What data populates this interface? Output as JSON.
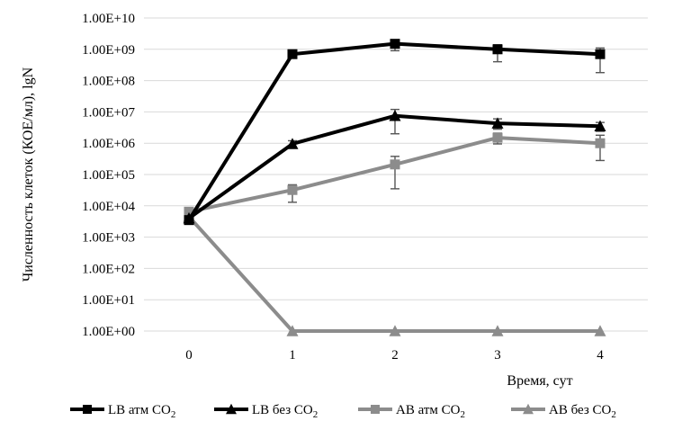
{
  "chart_data": {
    "type": "line",
    "ylabel": "Численность клеток (КОЕ/мл), lgN",
    "xlabel": "Время, сут",
    "x": [
      0,
      1,
      2,
      3,
      4
    ],
    "x_tick_labels": [
      "0",
      "1",
      "2",
      "3",
      "4"
    ],
    "y_scale": "log",
    "ylim": [
      1,
      10000000000
    ],
    "y_tick_labels": [
      "1.00E+00",
      "1.00E+01",
      "1.00E+02",
      "1.00E+03",
      "1.00E+04",
      "1.00E+05",
      "1.00E+06",
      "1.00E+07",
      "1.00E+08",
      "1.00E+09",
      "1.00E+10"
    ],
    "grid": "horizontal",
    "legend_position": "bottom",
    "series": [
      {
        "name": "LB атм CO2",
        "color": "#000000",
        "marker": "square",
        "values": [
          3500,
          700000000,
          1500000000,
          1000000000,
          700000000
        ],
        "error_low": [
          3000,
          600000000,
          900000000,
          400000000,
          180000000
        ],
        "error_high": [
          4000,
          800000000,
          1900000000,
          1400000000,
          1100000000
        ]
      },
      {
        "name": "LB без CO2",
        "color": "#000000",
        "marker": "triangle",
        "values": [
          4000,
          950000,
          7500000,
          4300000,
          3500000
        ],
        "error_low": [
          3500,
          750000,
          2000000,
          2800000,
          2400000
        ],
        "error_high": [
          4500,
          1200000,
          12000000,
          6000000,
          4600000
        ]
      },
      {
        "name": "АВ атм CO2",
        "color": "#8c8c8c",
        "marker": "square",
        "values": [
          6500,
          32000,
          210000,
          1500000,
          1000000
        ],
        "error_low": [
          5500,
          13000,
          35000,
          950000,
          280000
        ],
        "error_high": [
          7500,
          47000,
          380000,
          2100000,
          1800000
        ]
      },
      {
        "name": "АВ без CO2",
        "color": "#8c8c8c",
        "marker": "triangle",
        "values": [
          4500,
          1,
          1,
          1,
          1
        ],
        "error_low": [
          4000,
          1,
          1,
          1,
          1
        ],
        "error_high": [
          5000,
          1,
          1,
          1,
          1
        ]
      }
    ]
  },
  "legend": [
    {
      "name": "LB атм CO",
      "sub": "2"
    },
    {
      "name": "LB без CO",
      "sub": "2"
    },
    {
      "name": "АВ атм CO",
      "sub": "2"
    },
    {
      "name": "АВ без CO",
      "sub": "2"
    }
  ]
}
